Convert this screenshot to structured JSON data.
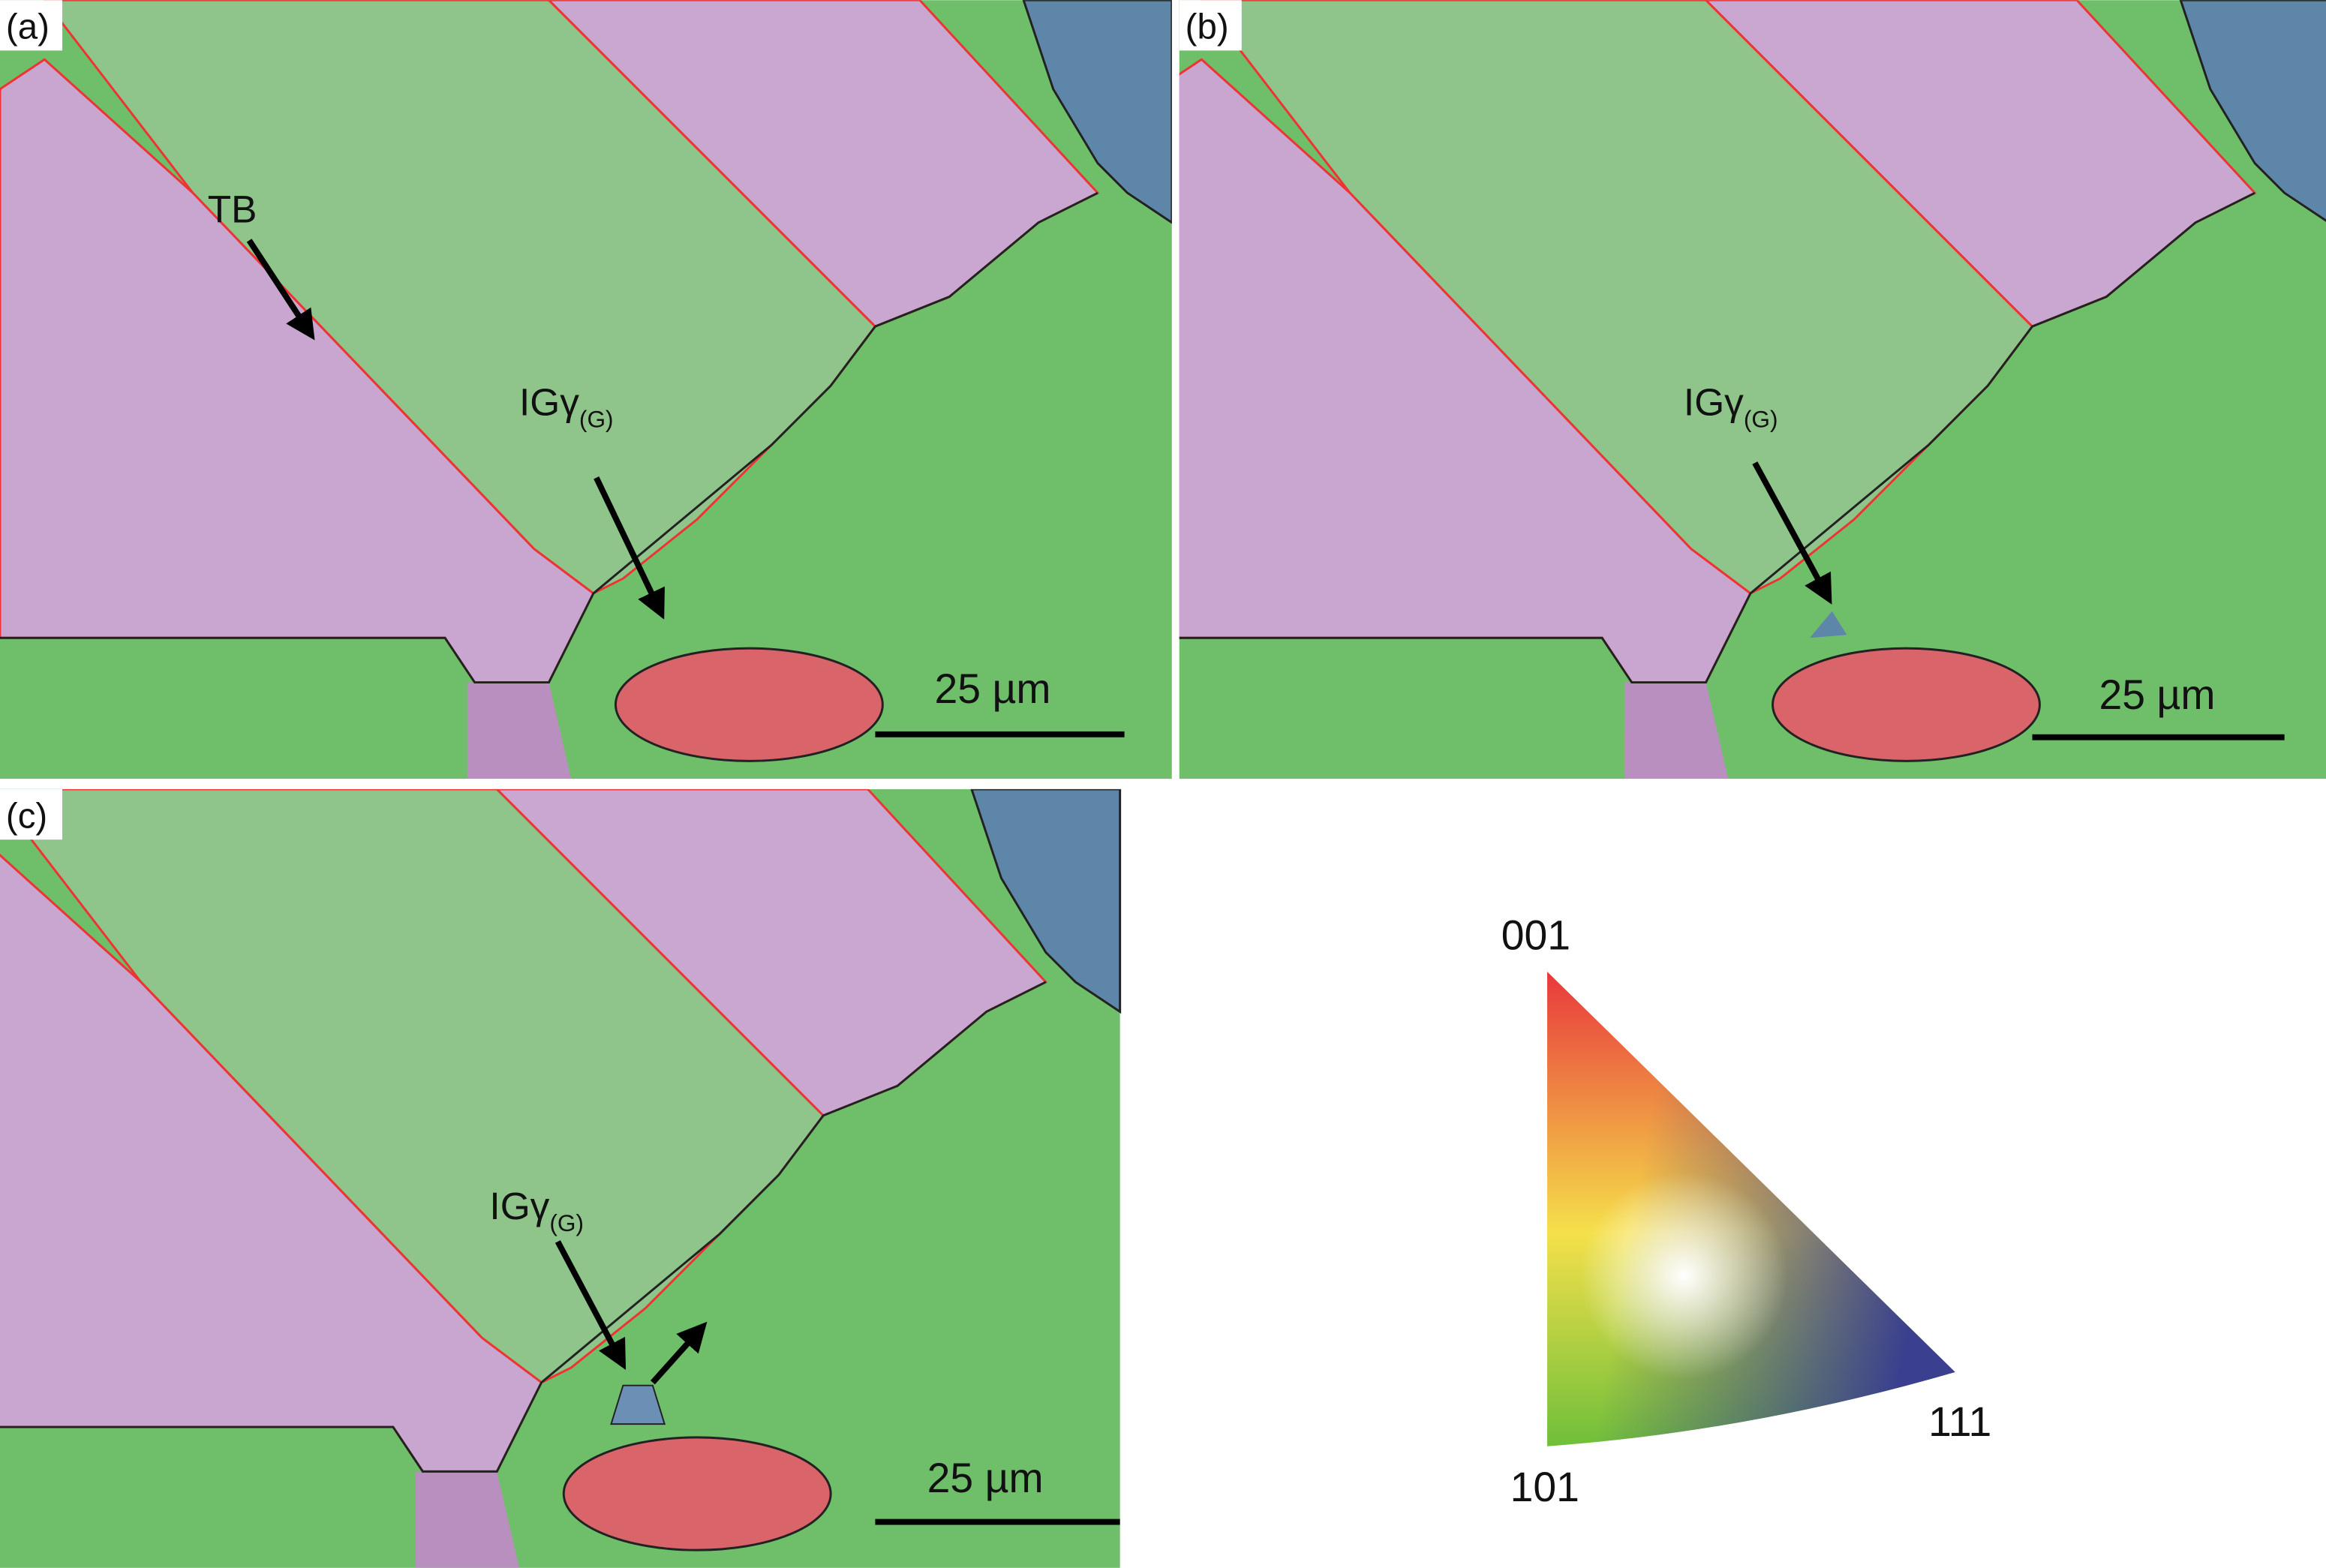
{
  "panels": [
    {
      "label": "(a)",
      "annotations": [
        {
          "text": "TB"
        },
        {
          "text": "IGγ",
          "subscript": "(G)"
        }
      ],
      "scale_bar": "25 µm"
    },
    {
      "label": "(b)",
      "annotations": [
        {
          "text": "IGγ",
          "subscript": "(G)"
        }
      ],
      "scale_bar": "25 µm"
    },
    {
      "label": "(c)",
      "annotations": [
        {
          "text": "IGγ",
          "subscript": "(G)"
        }
      ],
      "scale_bar": "25 µm"
    }
  ],
  "legend": {
    "corners": [
      "001",
      "101",
      "111"
    ]
  }
}
